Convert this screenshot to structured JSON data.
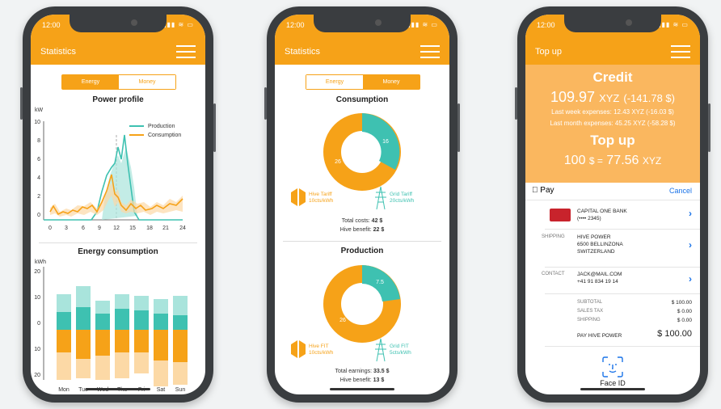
{
  "status_time": "12:00",
  "status_icons": "▮▮▮ ≋ ▭",
  "colors": {
    "orange": "#f6a218",
    "teal": "#3ec1b1",
    "light_teal": "#a9e4dc",
    "peach": "#fcd9a6"
  },
  "phone1": {
    "title": "Statistics",
    "seg_energy": "Energy",
    "seg_money": "Money",
    "profile": {
      "title": "Power profile",
      "unit": "kW",
      "legend_production": "Production",
      "legend_consumption": "Consumption",
      "y_ticks": [
        "10",
        "8",
        "6",
        "4",
        "2",
        "0"
      ],
      "x_ticks": [
        "0",
        "3",
        "6",
        "9",
        "12",
        "15",
        "18",
        "21",
        "24"
      ]
    },
    "energy": {
      "title": "Energy consumption",
      "unit": "kWh",
      "y_ticks": [
        "20",
        "10",
        "0",
        "10",
        "20"
      ],
      "days": [
        "Mon",
        "Tue",
        "Wed",
        "Thu",
        "Fri",
        "Sat",
        "Sun"
      ]
    }
  },
  "phone2": {
    "title": "Statistics",
    "seg_energy": "Energy",
    "seg_money": "Money",
    "consumption": {
      "title": "Consumption",
      "value_orange": "26",
      "value_teal": "16",
      "hive_label": "Hive Tariff",
      "hive_rate": "10cts/kWh",
      "grid_label": "Grid Tariff",
      "grid_rate": "20cts/kWh",
      "total_label": "Total costs:",
      "total_value": "42 $",
      "benefit_label": "Hive benefit:",
      "benefit_value": "22 $"
    },
    "production": {
      "title": "Production",
      "value_orange": "26",
      "value_teal": "7.5",
      "hive_label": "Hive FIT",
      "hive_rate": "10cts/kWh",
      "grid_label": "Grid FIT",
      "grid_rate": "5cts/kWh",
      "total_label": "Total earnings:",
      "total_value": "33.5 $",
      "benefit_label": "Hive benefit:",
      "benefit_value": "13 $"
    }
  },
  "phone3": {
    "title": "Top up",
    "credit_title": "Credit",
    "credit_value": "109.97",
    "credit_unit": "XYZ",
    "credit_usd": "(-141.78 $)",
    "last_week": "Last week expenses: 12.43 XYZ (-16.03 $)",
    "last_month": "Last month expenses: 45.25 XYZ (-58.28 $)",
    "topup_title": "Top up",
    "topup_amount": "100",
    "topup_usd_sign": "$ =",
    "topup_xyz": "77.56",
    "topup_xyz_unit": "XYZ",
    "pay_brand": "Pay",
    "cancel": "Cancel",
    "card_name": "CAPITAL ONE BANK",
    "card_number": "(•••• 2345)",
    "shipping_label": "SHIPPING",
    "shipping_name": "HIVE POWER",
    "shipping_street": "6500 BELLINZONA",
    "shipping_country": "SWITZERLAND",
    "contact_label": "CONTACT",
    "contact_email": "JACK@MAIL.COM",
    "contact_phone": "+41 91 834 19 14",
    "subtotal_label": "SUBTOTAL",
    "subtotal_value": "$ 100.00",
    "tax_label": "SALES TAX",
    "tax_value": "$ 0.00",
    "ship_cost_label": "SHIPPING",
    "ship_cost_value": "$ 0.00",
    "pay_label": "PAY HIVE POWER",
    "pay_value": "$ 100.00",
    "faceid_label": "Face ID"
  }
}
